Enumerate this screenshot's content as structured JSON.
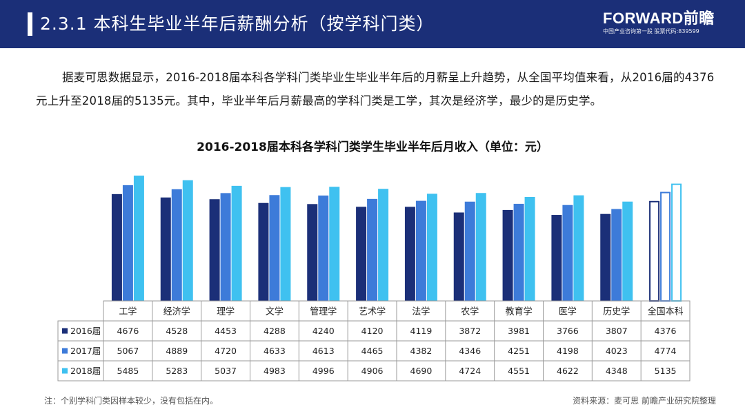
{
  "header": {
    "title": "2.3.1 本科生毕业半年后薪酬分析（按学科门类）",
    "brand": "FORWARD前瞻",
    "tagline": "中国产业咨询第一股 股票代码:839599"
  },
  "paragraph": "据麦可思数据显示，2016-2018届本科各学科门类毕业生毕业半年后的月薪呈上升趋势，从全国平均值来看，从2016届的4376元上升至2018届的5135元。其中，毕业半年后月薪最高的学科门类是工学，其次是经济学，最少的是历史学。",
  "footer": {
    "note": "注：个别学科门类因样本较少，没有包括在内。",
    "source": "资料来源：麦可思 前瞻产业研究院整理"
  },
  "chart_data": {
    "type": "bar",
    "title": "2016-2018届本科各学科门类学生毕业半年后月收入（单位：元）",
    "categories": [
      "工学",
      "经济学",
      "理学",
      "文学",
      "管理学",
      "艺术学",
      "法学",
      "农学",
      "教育学",
      "医学",
      "历史学",
      "全国本科"
    ],
    "series": [
      {
        "name": "2016届",
        "color": "#1b2f78",
        "values": [
          4676,
          4528,
          4453,
          4288,
          4240,
          4120,
          4119,
          3872,
          3981,
          3766,
          3807,
          4376
        ]
      },
      {
        "name": "2017届",
        "color": "#3d7bd9",
        "values": [
          5067,
          4889,
          4720,
          4633,
          4613,
          4465,
          4382,
          4346,
          4251,
          4198,
          4023,
          4774
        ]
      },
      {
        "name": "2018届",
        "color": "#3fc1f0",
        "values": [
          5485,
          5283,
          5037,
          4983,
          4996,
          4906,
          4690,
          4724,
          4551,
          4622,
          4348,
          5135
        ]
      }
    ],
    "outlined_category": "全国本科",
    "legend": "table-rows",
    "grid": false
  }
}
